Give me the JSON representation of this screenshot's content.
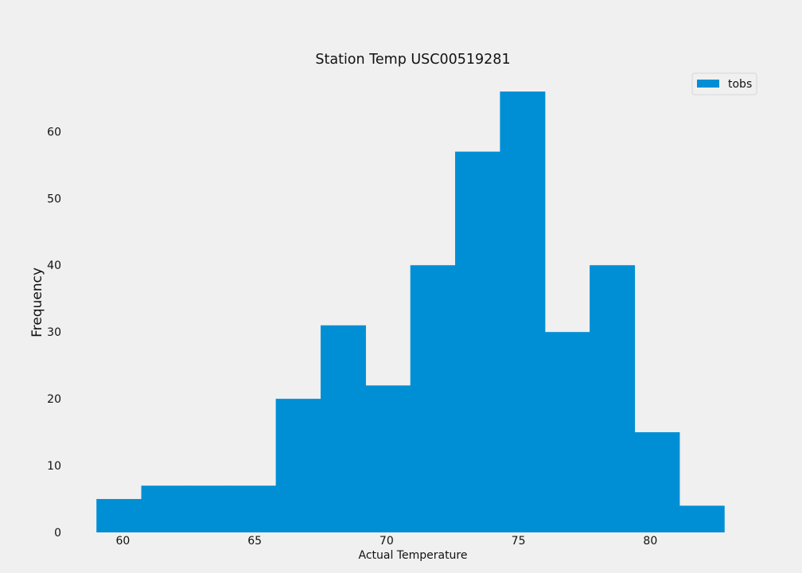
{
  "chart_data": {
    "type": "bar",
    "subtype": "histogram",
    "title": "Station Temp USC00519281",
    "xlabel": "Actual Temperature",
    "ylabel": "Frequency",
    "xlim": [
      58.3,
      83.7
    ],
    "ylim": [
      0,
      66
    ],
    "x_ticks": [
      60,
      65,
      70,
      75,
      80
    ],
    "y_ticks": [
      0,
      10,
      20,
      30,
      40,
      50,
      60
    ],
    "bin_edges": [
      59.0,
      60.7,
      62.4,
      64.1,
      65.8,
      67.5,
      69.2,
      70.9,
      72.6,
      74.3,
      76.0,
      77.7,
      79.4,
      81.1,
      82.8
    ],
    "series": [
      {
        "name": "tobs",
        "values": [
          5,
          7,
          7,
          7,
          20,
          31,
          22,
          40,
          57,
          66,
          30,
          40,
          15,
          4
        ]
      }
    ],
    "color": "#008fd5",
    "grid": false,
    "legend_position": "top-right"
  }
}
